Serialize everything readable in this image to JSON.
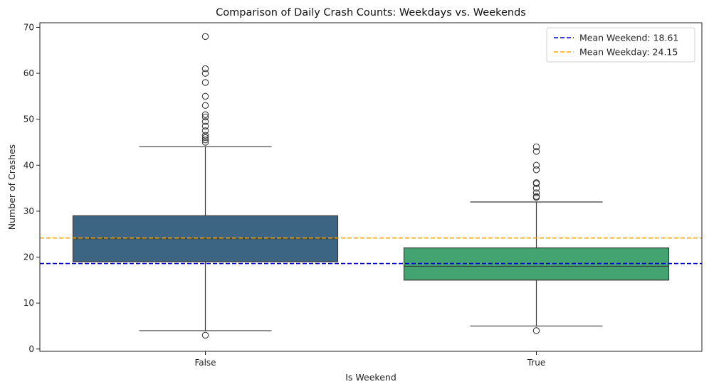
{
  "chart_data": {
    "type": "box",
    "title": "Comparison of Daily Crash Counts: Weekdays vs. Weekends",
    "xlabel": "Is Weekend",
    "ylabel": "Number of Crashes",
    "ylim": [
      -0.5,
      71
    ],
    "yticks": [
      0,
      10,
      20,
      30,
      40,
      50,
      60,
      70
    ],
    "categories": [
      "False",
      "True"
    ],
    "boxes": [
      {
        "category": "False",
        "color": "#3b6583",
        "q1": 19,
        "median": 24,
        "q3": 29,
        "whisker_low": 4,
        "whisker_high": 44,
        "outliers": [
          3,
          45,
          45.5,
          46,
          46.5,
          47.5,
          48.5,
          49.5,
          50.5,
          51,
          53,
          55,
          58,
          60,
          61,
          68
        ]
      },
      {
        "category": "True",
        "color": "#43a471",
        "q1": 15,
        "median": 18,
        "q3": 22,
        "whisker_low": 5,
        "whisker_high": 32,
        "outliers": [
          4,
          33,
          33.2,
          34,
          35,
          36,
          36.2,
          39,
          40,
          43,
          44
        ]
      }
    ],
    "reference_lines": [
      {
        "label": "Mean Weekend: 18.61",
        "value": 18.61,
        "color": "#0000cd",
        "style": "dashed"
      },
      {
        "label": "Mean Weekday: 24.15",
        "value": 24.15,
        "color": "#ffa500",
        "style": "dashed"
      }
    ],
    "legend_position": "top-right",
    "grid": false
  }
}
